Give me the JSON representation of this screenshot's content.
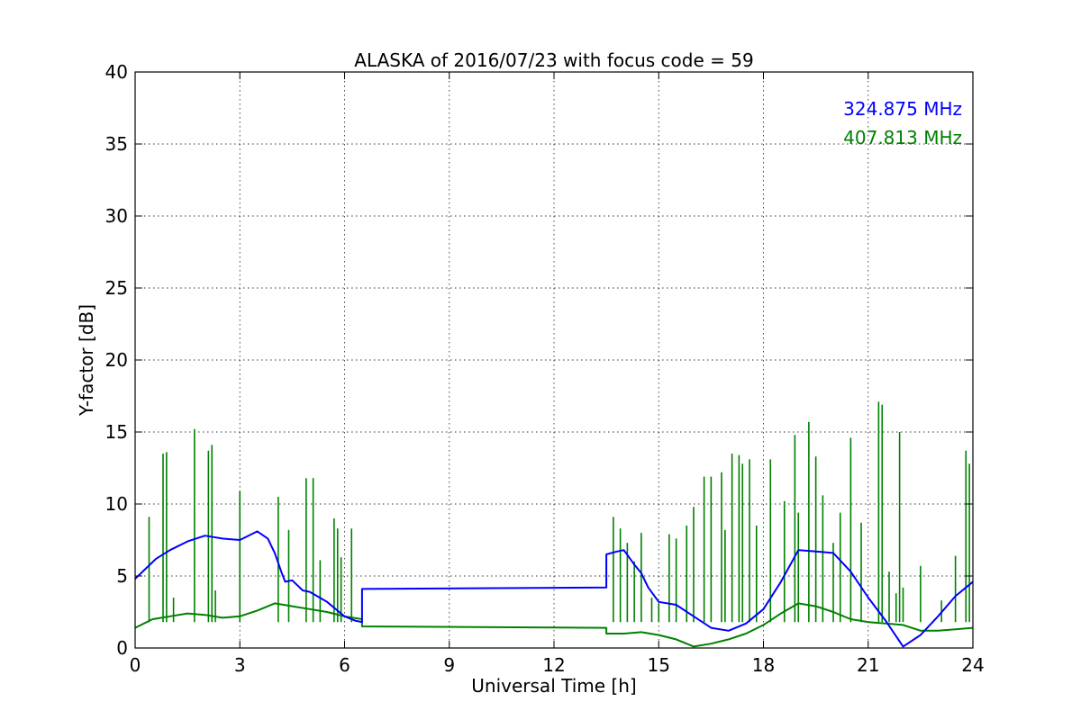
{
  "chart_data": {
    "type": "line",
    "title": "ALASKA of 2016/07/23 with focus code = 59",
    "xlabel": "Universal Time [h]",
    "ylabel": "Y-factor [dB]",
    "xlim": [
      0,
      24
    ],
    "ylim": [
      0,
      40
    ],
    "xticks": [
      0,
      3,
      6,
      9,
      12,
      15,
      18,
      21,
      24
    ],
    "yticks": [
      0,
      5,
      10,
      15,
      20,
      25,
      30,
      35,
      40
    ],
    "grid": true,
    "legend_position": "top-right",
    "series": [
      {
        "name": "324.875 MHz",
        "color": "#0000ff",
        "x": [
          0.0,
          0.3,
          0.6,
          1.0,
          1.5,
          2.0,
          2.5,
          3.0,
          3.5,
          3.8,
          4.0,
          4.2,
          4.3,
          4.5,
          4.8,
          5.0,
          5.5,
          6.0,
          6.3,
          6.5,
          6.5,
          13.5,
          13.5,
          13.8,
          14.0,
          14.3,
          14.5,
          14.7,
          15.0,
          15.5,
          16.0,
          16.5,
          17.0,
          17.5,
          18.0,
          18.5,
          19.0,
          19.5,
          20.0,
          20.5,
          21.0,
          21.5,
          22.0,
          22.5,
          23.0,
          23.5,
          24.0
        ],
        "y": [
          4.8,
          5.5,
          6.2,
          6.8,
          7.4,
          7.8,
          7.6,
          7.5,
          8.1,
          7.6,
          6.6,
          5.2,
          4.6,
          4.7,
          4.0,
          3.9,
          3.2,
          2.2,
          1.9,
          1.8,
          4.1,
          4.2,
          6.5,
          6.7,
          6.8,
          5.8,
          5.2,
          4.2,
          3.2,
          3.0,
          2.2,
          1.4,
          1.2,
          1.7,
          2.7,
          4.6,
          6.8,
          6.7,
          6.6,
          5.3,
          3.5,
          1.9,
          0.1,
          0.9,
          2.2,
          3.6,
          4.6
        ]
      },
      {
        "name": "407.813 MHz",
        "color": "#008000",
        "x": [
          0.0,
          0.5,
          1.0,
          1.5,
          2.0,
          2.5,
          3.0,
          3.5,
          4.0,
          4.5,
          5.0,
          5.5,
          6.0,
          6.5,
          6.5,
          13.5,
          13.5,
          14.0,
          14.5,
          15.0,
          15.5,
          16.0,
          16.5,
          17.0,
          17.5,
          18.0,
          18.5,
          19.0,
          19.5,
          20.0,
          20.5,
          21.0,
          21.5,
          22.0,
          22.5,
          23.0,
          23.5,
          24.0
        ],
        "y": [
          1.4,
          2.0,
          2.2,
          2.4,
          2.3,
          2.1,
          2.2,
          2.6,
          3.1,
          2.9,
          2.7,
          2.5,
          2.2,
          2.0,
          1.5,
          1.4,
          1.0,
          1.0,
          1.1,
          0.9,
          0.6,
          0.1,
          0.3,
          0.6,
          1.0,
          1.6,
          2.4,
          3.1,
          2.9,
          2.5,
          2.0,
          1.8,
          1.7,
          1.6,
          1.2,
          1.2,
          1.3,
          1.4
        ]
      },
      {
        "name": "",
        "color": "#008000",
        "spikes": [
          [
            0.4,
            9.1
          ],
          [
            0.8,
            13.5
          ],
          [
            0.9,
            13.6
          ],
          [
            1.1,
            3.5
          ],
          [
            1.7,
            15.2
          ],
          [
            2.1,
            13.7
          ],
          [
            2.2,
            14.1
          ],
          [
            2.3,
            4.0
          ],
          [
            3.0,
            10.9
          ],
          [
            4.1,
            10.5
          ],
          [
            4.4,
            8.2
          ],
          [
            4.9,
            11.8
          ],
          [
            5.1,
            11.8
          ],
          [
            5.3,
            6.1
          ],
          [
            5.7,
            9.0
          ],
          [
            5.8,
            8.3
          ],
          [
            5.9,
            6.3
          ],
          [
            6.2,
            8.3
          ],
          [
            13.7,
            9.1
          ],
          [
            13.9,
            8.3
          ],
          [
            14.1,
            7.3
          ],
          [
            14.3,
            6.0
          ],
          [
            14.5,
            8.0
          ],
          [
            14.8,
            3.5
          ],
          [
            15.0,
            3.1
          ],
          [
            15.3,
            7.9
          ],
          [
            15.5,
            7.6
          ],
          [
            15.8,
            8.5
          ],
          [
            16.0,
            9.8
          ],
          [
            16.3,
            11.9
          ],
          [
            16.5,
            11.9
          ],
          [
            16.8,
            12.2
          ],
          [
            16.9,
            8.2
          ],
          [
            17.1,
            13.5
          ],
          [
            17.3,
            13.4
          ],
          [
            17.4,
            12.8
          ],
          [
            17.6,
            13.1
          ],
          [
            17.8,
            8.5
          ],
          [
            18.2,
            13.1
          ],
          [
            18.6,
            10.2
          ],
          [
            18.9,
            14.8
          ],
          [
            19.0,
            9.4
          ],
          [
            19.3,
            15.7
          ],
          [
            19.5,
            13.3
          ],
          [
            19.7,
            10.6
          ],
          [
            20.0,
            7.3
          ],
          [
            20.2,
            9.4
          ],
          [
            20.5,
            14.6
          ],
          [
            20.8,
            8.7
          ],
          [
            21.3,
            17.1
          ],
          [
            21.4,
            16.9
          ],
          [
            21.6,
            5.3
          ],
          [
            21.8,
            3.8
          ],
          [
            21.9,
            15.0
          ],
          [
            22.0,
            4.2
          ],
          [
            22.5,
            5.7
          ],
          [
            23.1,
            3.3
          ],
          [
            23.5,
            6.4
          ],
          [
            23.8,
            13.7
          ],
          [
            23.9,
            12.8
          ]
        ]
      }
    ]
  }
}
